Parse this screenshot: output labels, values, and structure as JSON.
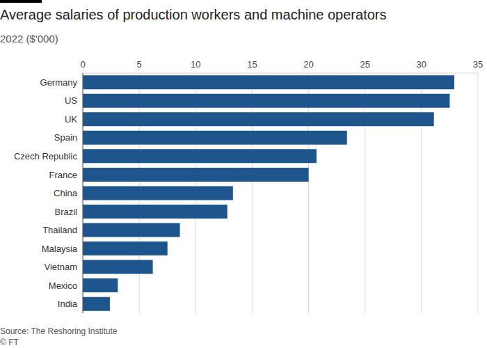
{
  "chart_data": {
    "type": "bar",
    "title": "Average salaries of production workers and machine operators",
    "subtitle": "2022 ($'000)",
    "source": "Source: The Reshoring Institute",
    "credit": "© FT",
    "orientation": "horizontal",
    "categories": [
      "Germany",
      "US",
      "UK",
      "Spain",
      "Czech Republic",
      "France",
      "China",
      "Brazil",
      "Thailand",
      "Malaysia",
      "Vietnam",
      "Mexico",
      "India"
    ],
    "values": [
      32.9,
      32.5,
      31.1,
      23.4,
      20.7,
      20.0,
      13.3,
      12.8,
      8.6,
      7.5,
      6.2,
      3.1,
      2.4
    ],
    "color": "#1e558c",
    "xlim": [
      0,
      35
    ],
    "xticks": [
      0,
      5,
      10,
      15,
      20,
      25,
      30,
      35
    ],
    "grid": true
  }
}
